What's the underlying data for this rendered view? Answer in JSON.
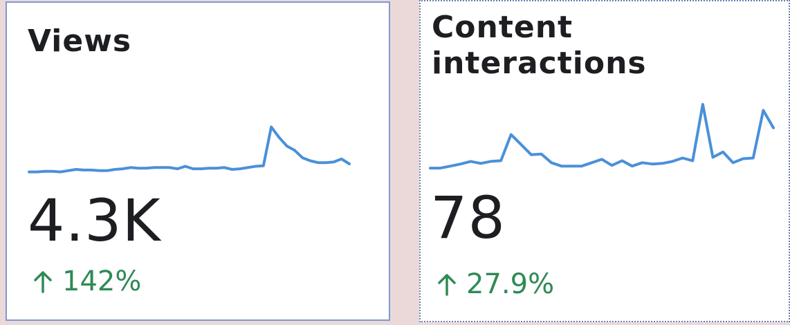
{
  "cards": [
    {
      "title": "Views",
      "value": "4.3K",
      "change": "142%",
      "change_direction": "up",
      "icon": "arrow-up-icon",
      "trend": [
        0.05,
        0.05,
        0.06,
        0.06,
        0.05,
        0.07,
        0.09,
        0.08,
        0.08,
        0.07,
        0.07,
        0.09,
        0.1,
        0.12,
        0.11,
        0.11,
        0.12,
        0.12,
        0.12,
        0.1,
        0.14,
        0.1,
        0.1,
        0.11,
        0.11,
        0.12,
        0.09,
        0.1,
        0.12,
        0.14,
        0.15,
        0.78,
        0.61,
        0.47,
        0.4,
        0.28,
        0.23,
        0.2,
        0.2,
        0.21,
        0.26,
        0.18
      ]
    },
    {
      "title": "Content interactions",
      "value": "78",
      "change": "27.9%",
      "change_direction": "up",
      "icon": "arrow-up-icon",
      "trend": [
        0.02,
        0.02,
        0.05,
        0.08,
        0.12,
        0.09,
        0.12,
        0.13,
        0.52,
        0.37,
        0.22,
        0.23,
        0.1,
        0.05,
        0.05,
        0.05,
        0.1,
        0.15,
        0.06,
        0.13,
        0.05,
        0.1,
        0.08,
        0.09,
        0.12,
        0.17,
        0.13,
        0.97,
        0.18,
        0.26,
        0.1,
        0.16,
        0.17,
        0.88,
        0.62
      ]
    }
  ],
  "colors": {
    "background": "#ead9d8",
    "card": "#ffffff",
    "line": "#4a90d9",
    "positive": "#2f8a55",
    "text": "#1c1e21"
  }
}
